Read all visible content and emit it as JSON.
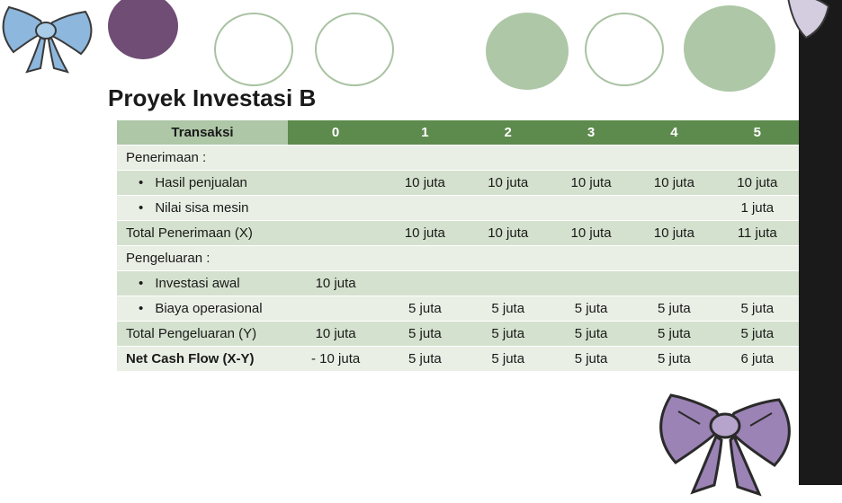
{
  "title": "Proyek Investasi B",
  "table": {
    "columns": [
      "Transaksi",
      "0",
      "1",
      "2",
      "3",
      "4",
      "5"
    ],
    "col_widths_pct": [
      25,
      12.5,
      12.5,
      12.5,
      12.5,
      12.5,
      12.5
    ],
    "header_bg_label": "#aec7a7",
    "header_bg_data": "#5d8a4d",
    "header_text_color": "#ffffff",
    "row_odd_bg": "#e9efe5",
    "row_even_bg": "#d4e1ce",
    "font_size": 15,
    "rows": [
      {
        "label": "Penerimaan :",
        "bold": false,
        "indent": false,
        "cells": [
          "",
          "",
          "",
          "",
          "",
          ""
        ]
      },
      {
        "label": "Hasil penjualan",
        "bullet": true,
        "indent": true,
        "cells": [
          "",
          "10 juta",
          "10 juta",
          "10 juta",
          "10 juta",
          "10 juta"
        ]
      },
      {
        "label": "Nilai sisa mesin",
        "bullet": true,
        "indent": true,
        "cells": [
          "",
          "",
          "",
          "",
          "",
          "1 juta"
        ]
      },
      {
        "label": "Total Penerimaan (X)",
        "cells": [
          "",
          "10 juta",
          "10 juta",
          "10 juta",
          "10 juta",
          "11 juta"
        ]
      },
      {
        "label": "Pengeluaran :",
        "cells": [
          "",
          "",
          "",
          "",
          "",
          ""
        ]
      },
      {
        "label": "Investasi awal",
        "bullet": true,
        "indent": true,
        "cells": [
          "10 juta",
          "",
          "",
          "",
          "",
          ""
        ]
      },
      {
        "label": "Biaya operasional",
        "bullet": true,
        "indent": true,
        "cells": [
          "",
          "5 juta",
          "5 juta",
          "5 juta",
          "5 juta",
          "5 juta"
        ]
      },
      {
        "label": "Total Pengeluaran (Y)",
        "cells": [
          "10 juta",
          "5 juta",
          "5 juta",
          "5 juta",
          "5 juta",
          "5 juta"
        ]
      },
      {
        "label": "Net Cash Flow (X-Y)",
        "bold": true,
        "cells": [
          "- 10 juta",
          "5 juta",
          "5 juta",
          "5 juta",
          "5 juta",
          "6 juta"
        ]
      }
    ]
  },
  "decorations": {
    "circle_fill": "#aec7a7",
    "circle_stroke": "#a9c2a2",
    "purple_circle": "#704d75",
    "right_bar_color": "#1a1a1a",
    "bow_tl_color": "#8db7dc",
    "bow_br_color": "#8a6fa8"
  }
}
